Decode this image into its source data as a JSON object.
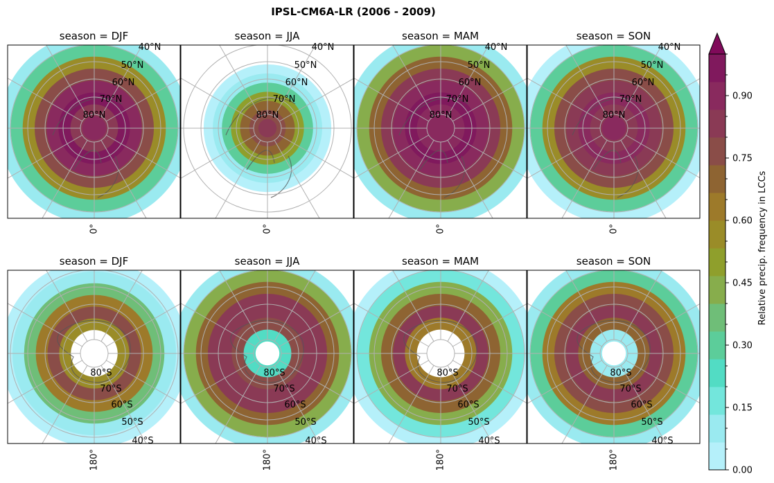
{
  "title": "IPSL-CM6A-LR (2006 - 2009)",
  "panels": [
    {
      "id": "nh-djf",
      "title": "season = DJF",
      "hemisphere": "north",
      "lon_label": "0°",
      "extent": [
        0.62,
        1.02
      ],
      "bands": [
        0.9,
        0.84,
        0.94,
        0.9,
        0.75,
        0.55,
        0.3,
        0.08
      ]
    },
    {
      "id": "nh-jja",
      "title": "season = JJA",
      "hemisphere": "north",
      "lon_label": "0°",
      "extent": [
        0.42,
        0.78
      ],
      "bands": [
        0.82,
        0.78,
        0.7,
        0.5,
        0.3,
        0.12,
        0.04,
        0.0
      ]
    },
    {
      "id": "nh-mam",
      "title": "season = MAM",
      "hemisphere": "north",
      "lon_label": "0°",
      "extent": [
        0.72,
        1.02
      ],
      "bands": [
        0.9,
        0.88,
        0.94,
        0.92,
        0.85,
        0.72,
        0.45,
        0.12
      ]
    },
    {
      "id": "nh-son",
      "title": "season = SON",
      "hemisphere": "north",
      "lon_label": "0°",
      "extent": [
        0.6,
        1.02
      ],
      "bands": [
        0.9,
        0.86,
        0.9,
        0.86,
        0.76,
        0.55,
        0.28,
        0.06
      ]
    },
    {
      "id": "sh-djf",
      "title": "season = DJF",
      "hemisphere": "south",
      "lon_label": "180°",
      "extent": [
        0.82,
        1.0
      ],
      "bands": [
        0.0,
        0.0,
        0.55,
        0.78,
        0.62,
        0.35,
        0.12,
        0.04
      ]
    },
    {
      "id": "sh-jja",
      "title": "season = JJA",
      "hemisphere": "south",
      "lon_label": "180°",
      "extent": [
        0.88,
        1.02
      ],
      "bands": [
        0.0,
        0.2,
        0.78,
        0.84,
        0.8,
        0.68,
        0.42,
        0.12
      ]
    },
    {
      "id": "sh-mam",
      "title": "season = MAM",
      "hemisphere": "south",
      "lon_label": "180°",
      "extent": [
        0.86,
        1.02
      ],
      "bands": [
        0.0,
        0.0,
        0.62,
        0.82,
        0.72,
        0.45,
        0.18,
        0.05
      ]
    },
    {
      "id": "sh-son",
      "title": "season = SON",
      "hemisphere": "south",
      "lon_label": "180°",
      "extent": [
        0.88,
        1.02
      ],
      "bands": [
        0.0,
        0.1,
        0.72,
        0.84,
        0.78,
        0.6,
        0.3,
        0.08
      ]
    }
  ],
  "lat_labels": {
    "north": [
      "40°N",
      "50°N",
      "60°N",
      "70°N",
      "80°N"
    ],
    "south": [
      "80°S",
      "70°S",
      "60°S",
      "50°S",
      "40°S"
    ]
  },
  "colorbar": {
    "label": "Relative precip. frequency in LCCs",
    "ticks": [
      "0.00",
      "0.15",
      "0.30",
      "0.45",
      "0.60",
      "0.75",
      "0.90"
    ],
    "tick_values": [
      0.0,
      0.15,
      0.3,
      0.45,
      0.6,
      0.75,
      0.9
    ],
    "range": [
      0,
      1
    ],
    "levels": 20,
    "extend": "max",
    "colors": [
      "#b5f0fa",
      "#9aeaf0",
      "#73e6dc",
      "#52dcc4",
      "#5ccd9a",
      "#6fbe78",
      "#87ad4c",
      "#8f9f2c",
      "#9a8c28",
      "#9d7a2a",
      "#8e6432",
      "#8a4d48",
      "#8a3a55",
      "#892a5e",
      "#80195d"
    ]
  },
  "chart_data": {
    "type": "heatmap",
    "title": "IPSL-CM6A-LR (2006 - 2009)",
    "projection": "polar stereographic (north row, south row)",
    "variable": "Relative precip. frequency in LCCs",
    "seasons": [
      "DJF",
      "JJA",
      "MAM",
      "SON"
    ],
    "value_range": [
      0,
      1
    ],
    "colorbar_ticks": [
      0.0,
      0.15,
      0.3,
      0.45,
      0.6,
      0.75,
      0.9
    ],
    "approx_band_means_note": "bands ordered from pole outward (approx. values read from colors)"
  }
}
